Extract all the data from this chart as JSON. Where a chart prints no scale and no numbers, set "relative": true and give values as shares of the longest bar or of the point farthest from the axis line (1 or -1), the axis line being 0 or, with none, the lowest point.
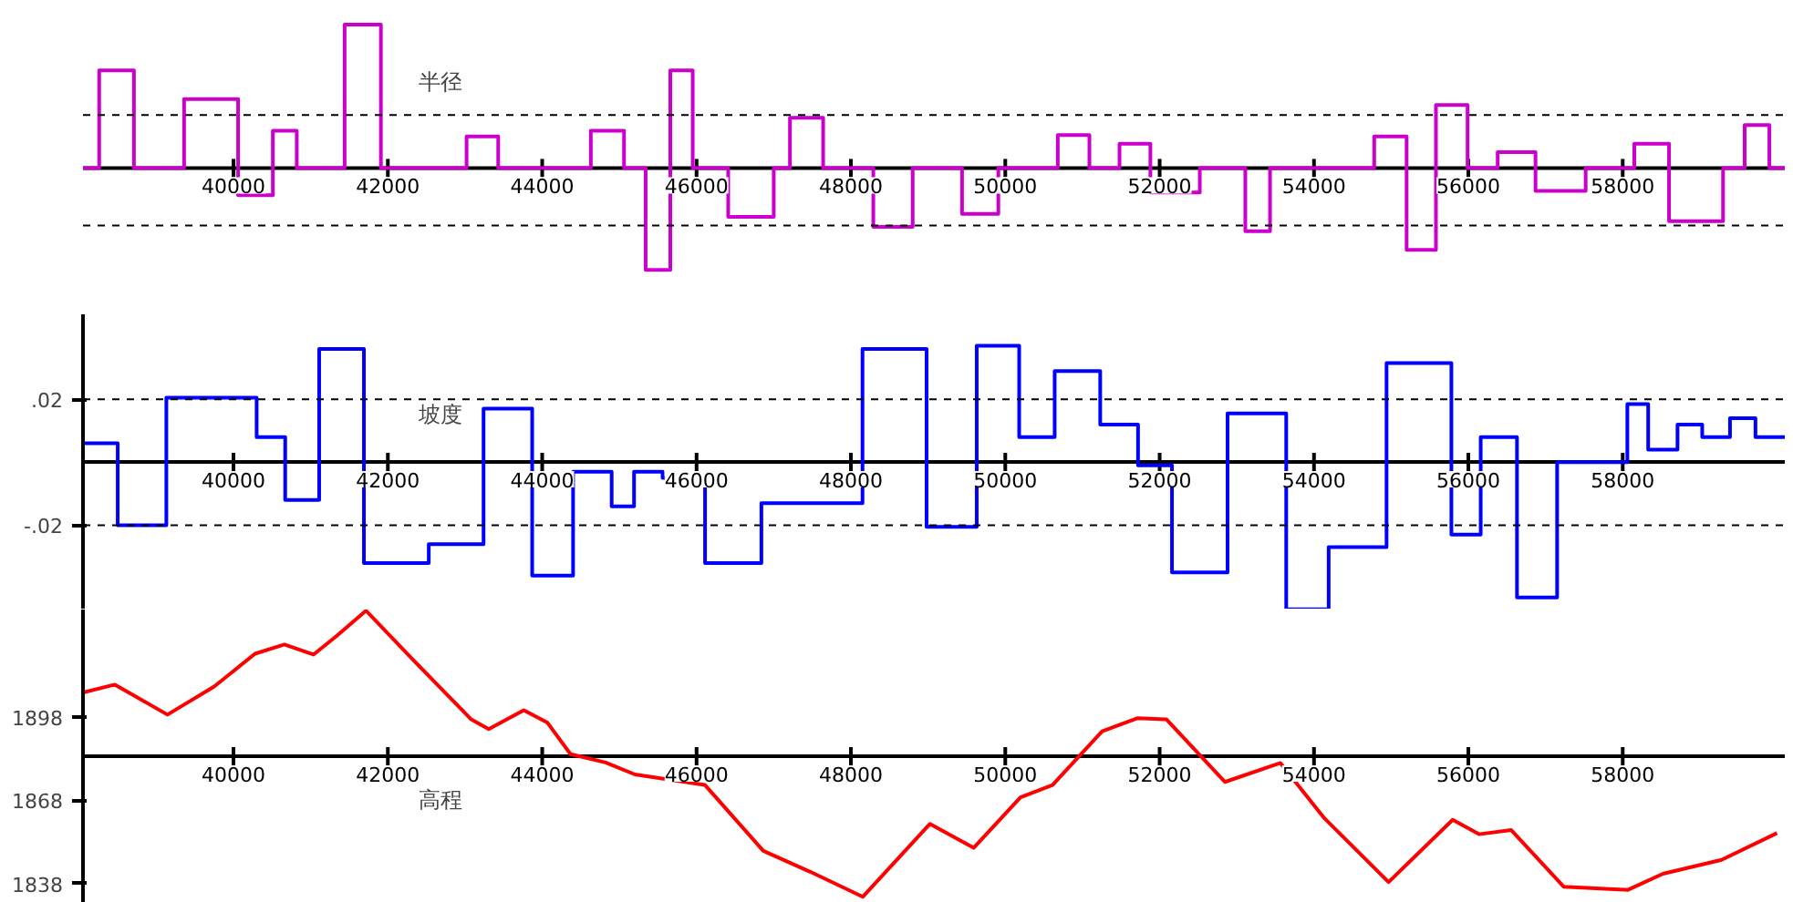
{
  "chart_data": [
    {
      "type": "step",
      "title": "半径",
      "relative": true,
      "tick_labels": "x",
      "xlim": [
        38050,
        60100
      ],
      "xticks": [
        40000,
        42000,
        44000,
        46000,
        48000,
        50000,
        52000,
        54000,
        56000,
        58000
      ],
      "x": [
        38050,
        38260,
        38710,
        39360,
        40060,
        40510,
        40820,
        41440,
        41910,
        43020,
        43430,
        44630,
        45060,
        45340,
        45660,
        45950,
        46410,
        47000,
        47210,
        47640,
        48290,
        48800,
        49440,
        49910,
        50680,
        51090,
        51480,
        51880,
        52520,
        53110,
        53430,
        54780,
        55200,
        55580,
        55990,
        56380,
        56870,
        57520,
        58150,
        58600,
        59300,
        59580,
        59900,
        60100
      ],
      "series": [
        {
          "color": "#cc00cc",
          "values": [
            0,
            0.68,
            0,
            0.48,
            -0.19,
            0.26,
            0,
            1.0,
            0,
            0.22,
            0,
            0.26,
            0,
            -0.71,
            0.68,
            0,
            -0.34,
            0,
            0.35,
            0,
            -0.41,
            0,
            -0.32,
            0,
            0.23,
            0,
            0.17,
            -0.17,
            0,
            -0.44,
            0,
            0.22,
            -0.57,
            0.44,
            0,
            0.11,
            -0.16,
            0,
            0.17,
            -0.37,
            0,
            0.3,
            0,
            0
          ]
        }
      ],
      "ref_lines": [
        {
          "axis": "y",
          "value": 0.37,
          "line_style": "dashed",
          "color": "#000000"
        },
        {
          "axis": "y",
          "value": -0.4,
          "line_style": "dashed",
          "color": "#000000"
        }
      ]
    },
    {
      "type": "step",
      "title": "坡度",
      "xlim": [
        38050,
        60100
      ],
      "xticks": [
        40000,
        42000,
        44000,
        46000,
        48000,
        50000,
        52000,
        54000,
        56000,
        58000
      ],
      "ylim": [
        -0.0468,
        0.047
      ],
      "yticks": [
        {
          "value": 0.02,
          "label": ".02"
        },
        {
          "value": -0.02,
          "label": "-.02"
        }
      ],
      "x": [
        38050,
        38500,
        39130,
        40300,
        40670,
        41110,
        41690,
        42530,
        43240,
        43870,
        44400,
        44900,
        45190,
        45560,
        46110,
        46840,
        48150,
        48980,
        49630,
        50180,
        50640,
        51230,
        51720,
        52160,
        52880,
        53640,
        54190,
        54940,
        55780,
        56160,
        56630,
        57150,
        58060,
        58330,
        58710,
        59030,
        59390,
        59720,
        60100
      ],
      "series": [
        {
          "color": "#0000ff",
          "values": [
            0.006,
            -0.02,
            0.0205,
            0.008,
            -0.012,
            0.036,
            -0.032,
            -0.026,
            0.017,
            -0.036,
            -0.003,
            -0.014,
            -0.003,
            -0.005,
            -0.032,
            -0.013,
            0.036,
            -0.0205,
            0.037,
            0.008,
            0.029,
            0.012,
            -0.001,
            -0.035,
            0.0155,
            -0.0467,
            -0.027,
            0.0315,
            -0.023,
            0.008,
            -0.043,
            0,
            0.0185,
            0.004,
            0.012,
            0.008,
            0.014,
            0.008,
            0.008
          ]
        }
      ],
      "ref_lines": [
        {
          "axis": "y",
          "value": 0.02,
          "line_style": "dashed",
          "color": "#000000"
        },
        {
          "axis": "y",
          "value": -0.02,
          "line_style": "dashed",
          "color": "#000000"
        }
      ]
    },
    {
      "type": "line",
      "title": "高程",
      "xlim": [
        38050,
        60100
      ],
      "xticks": [
        40000,
        42000,
        44000,
        46000,
        48000,
        50000,
        52000,
        54000,
        56000,
        58000
      ],
      "ylim": [
        1831,
        1936.5
      ],
      "yticks": [
        1898,
        1868,
        1838
      ],
      "x": [
        38054,
        38463,
        39144,
        39750,
        40279,
        40659,
        41036,
        41340,
        41717,
        42323,
        43080,
        43307,
        43761,
        44065,
        44367,
        44821,
        45201,
        46109,
        46865,
        47472,
        48153,
        49023,
        49590,
        50197,
        50612,
        51255,
        51709,
        52089,
        52845,
        53565,
        54133,
        54966,
        55797,
        56138,
        56556,
        57237,
        58068,
        58522,
        59281,
        59999
      ],
      "series": [
        {
          "color": "#ff0000",
          "values": [
            1906.7,
            1909.5,
            1898.7,
            1908.8,
            1920.6,
            1923.9,
            1920.3,
            1927.1,
            1936.1,
            1918.5,
            1897,
            1893.5,
            1900.3,
            1895.9,
            1884.5,
            1881.5,
            1877.2,
            1873.4,
            1849.7,
            1842.2,
            1833.2,
            1859.4,
            1850.8,
            1869,
            1873.4,
            1892.7,
            1897.4,
            1897,
            1874.5,
            1881.3,
            1861.5,
            1838.5,
            1860.9,
            1855.7,
            1857.2,
            1836.8,
            1835.7,
            1841.5,
            1846.5,
            1856.1
          ]
        }
      ]
    }
  ]
}
